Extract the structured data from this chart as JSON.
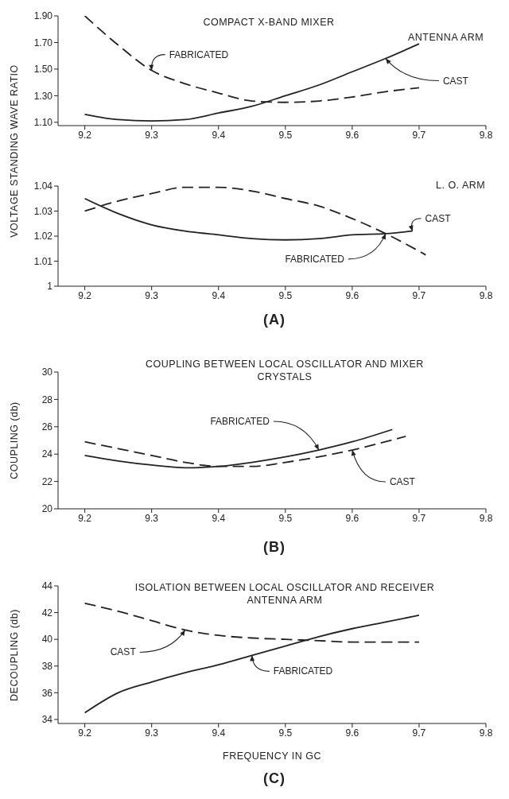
{
  "chart_data": [
    {
      "type": "line",
      "title": "COMPACT X-BAND MIXER",
      "ylabel": "VOLTAGE STANDING WAVE RATIO",
      "annotations": [
        "ANTENNA ARM"
      ],
      "xlim": [
        9.16,
        9.8
      ],
      "xticks": [
        9.2,
        9.3,
        9.4,
        9.5,
        9.6,
        9.7,
        9.8
      ],
      "ylim": [
        1.075,
        1.9
      ],
      "yticks": [
        {
          "value": 1.1,
          "label": "1.10"
        },
        {
          "value": 1.3,
          "label": "1.30"
        },
        {
          "value": 1.5,
          "label": "1.50"
        },
        {
          "value": 1.7,
          "label": "1.70"
        },
        {
          "value": 1.9,
          "label": "1.90"
        }
      ],
      "marker": "none",
      "series": [
        {
          "name": "FABRICATED",
          "color": "#222222",
          "line_style": "dashed",
          "x": [
            9.2,
            9.25,
            9.3,
            9.35,
            9.4,
            9.45,
            9.5,
            9.55,
            9.6,
            9.65,
            9.7
          ],
          "values": [
            1.9,
            1.68,
            1.49,
            1.39,
            1.32,
            1.26,
            1.25,
            1.26,
            1.29,
            1.33,
            1.36
          ]
        },
        {
          "name": "CAST",
          "color": "#222222",
          "line_style": "solid",
          "x": [
            9.2,
            9.25,
            9.3,
            9.35,
            9.4,
            9.45,
            9.5,
            9.55,
            9.6,
            9.65,
            9.7
          ],
          "values": [
            1.16,
            1.12,
            1.11,
            1.12,
            1.17,
            1.22,
            1.3,
            1.38,
            1.48,
            1.58,
            1.69
          ]
        }
      ]
    },
    {
      "type": "line",
      "annotations": [
        "L. O. ARM",
        "(A)"
      ],
      "xlim": [
        9.16,
        9.8
      ],
      "xticks": [
        9.2,
        9.3,
        9.4,
        9.5,
        9.6,
        9.7,
        9.8
      ],
      "ylim": [
        1,
        1.04
      ],
      "yticks": [
        1,
        1.01,
        1.02,
        1.03,
        1.04
      ],
      "marker": "none",
      "series": [
        {
          "name": "FABRICATED",
          "color": "#222222",
          "line_style": "dashed",
          "x": [
            9.2,
            9.25,
            9.3,
            9.35,
            9.4,
            9.45,
            9.5,
            9.55,
            9.6,
            9.65,
            9.71
          ],
          "values": [
            1.03,
            1.034,
            1.037,
            1.0395,
            1.0395,
            1.038,
            1.035,
            1.032,
            1.027,
            1.021,
            1.0125
          ]
        },
        {
          "name": "CAST",
          "color": "#222222",
          "line_style": "solid",
          "x": [
            9.2,
            9.25,
            9.3,
            9.35,
            9.4,
            9.45,
            9.5,
            9.55,
            9.6,
            9.65,
            9.69
          ],
          "values": [
            1.035,
            1.029,
            1.0245,
            1.022,
            1.0205,
            1.019,
            1.0185,
            1.019,
            1.0205,
            1.021,
            1.022
          ]
        }
      ]
    },
    {
      "type": "line",
      "title": "COUPLING BETWEEN LOCAL OSCILLATOR AND MIXER CRYSTALS",
      "ylabel": "COUPLING (db)",
      "annotations": [
        "(B)"
      ],
      "xlim": [
        9.16,
        9.8
      ],
      "xticks": [
        9.2,
        9.3,
        9.4,
        9.5,
        9.6,
        9.7,
        9.8
      ],
      "ylim": [
        20,
        30
      ],
      "yticks": [
        20,
        22,
        24,
        26,
        28,
        30
      ],
      "marker": "none",
      "series": [
        {
          "name": "FABRICATED",
          "color": "#222222",
          "line_style": "solid",
          "x": [
            9.2,
            9.25,
            9.3,
            9.35,
            9.4,
            9.45,
            9.5,
            9.55,
            9.6,
            9.66
          ],
          "values": [
            23.9,
            23.5,
            23.2,
            23.0,
            23.1,
            23.4,
            23.8,
            24.3,
            24.9,
            25.8
          ]
        },
        {
          "name": "CAST",
          "color": "#222222",
          "line_style": "dashed",
          "x": [
            9.2,
            9.25,
            9.3,
            9.35,
            9.4,
            9.45,
            9.5,
            9.55,
            9.6,
            9.68
          ],
          "values": [
            24.9,
            24.4,
            23.9,
            23.4,
            23.1,
            23.1,
            23.4,
            23.8,
            24.3,
            25.3
          ]
        }
      ]
    },
    {
      "type": "line",
      "title": "ISOLATION BETWEEN LOCAL OSCILLATOR AND RECEIVER ANTENNA ARM",
      "ylabel": "DECOUPLING (db)",
      "xlabel": "FREQUENCY IN GC",
      "annotations": [
        "(C)"
      ],
      "xlim": [
        9.16,
        9.8
      ],
      "xticks": [
        9.2,
        9.3,
        9.4,
        9.5,
        9.6,
        9.7,
        9.8
      ],
      "ylim": [
        33.7,
        44
      ],
      "yticks": [
        34,
        36,
        38,
        40,
        42,
        44
      ],
      "marker": "none",
      "series": [
        {
          "name": "CAST",
          "color": "#222222",
          "line_style": "dashed",
          "x": [
            9.2,
            9.25,
            9.3,
            9.35,
            9.4,
            9.45,
            9.5,
            9.55,
            9.6,
            9.65,
            9.7
          ],
          "values": [
            42.7,
            42.1,
            41.4,
            40.7,
            40.3,
            40.1,
            40.0,
            39.9,
            39.8,
            39.8,
            39.8
          ]
        },
        {
          "name": "FABRICATED",
          "color": "#222222",
          "line_style": "solid",
          "x": [
            9.2,
            9.25,
            9.3,
            9.35,
            9.4,
            9.45,
            9.5,
            9.55,
            9.6,
            9.65,
            9.7
          ],
          "values": [
            34.5,
            36.0,
            36.8,
            37.5,
            38.1,
            38.8,
            39.5,
            40.2,
            40.8,
            41.3,
            41.8
          ]
        }
      ]
    }
  ]
}
